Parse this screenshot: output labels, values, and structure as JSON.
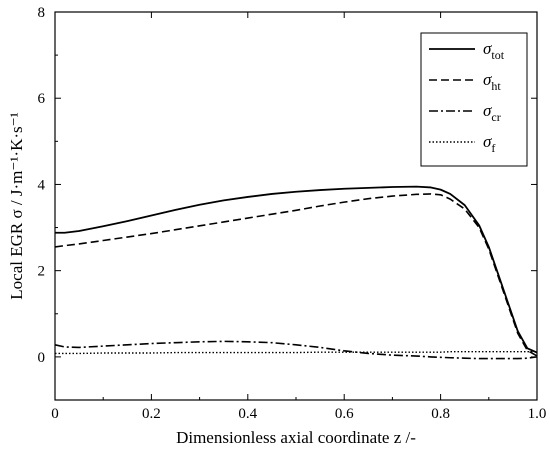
{
  "chart_data": {
    "type": "line",
    "title": "",
    "xlabel": "Dimensionless axial coordinate z /-",
    "ylabel": "Local EGR σ / J·m⁻¹·K·s⁻¹",
    "xlim": [
      0,
      1.0
    ],
    "ylim": [
      -1,
      8
    ],
    "x_ticks": [
      "0",
      "0.2",
      "0.4",
      "0.6",
      "0.8",
      "1.0"
    ],
    "y_ticks": [
      "0",
      "2",
      "4",
      "6",
      "8"
    ],
    "legend_position": "top-right",
    "x": [
      0,
      0.02,
      0.05,
      0.1,
      0.15,
      0.2,
      0.25,
      0.3,
      0.35,
      0.4,
      0.45,
      0.5,
      0.55,
      0.6,
      0.65,
      0.7,
      0.75,
      0.78,
      0.8,
      0.82,
      0.85,
      0.88,
      0.9,
      0.92,
      0.94,
      0.96,
      0.98,
      1.0
    ],
    "series": [
      {
        "name": "σtot",
        "symbol": "σ",
        "subscript": "tot",
        "style": "solid",
        "values": [
          2.88,
          2.88,
          2.92,
          3.03,
          3.15,
          3.28,
          3.41,
          3.53,
          3.63,
          3.71,
          3.78,
          3.83,
          3.87,
          3.9,
          3.92,
          3.94,
          3.95,
          3.93,
          3.88,
          3.78,
          3.52,
          3.05,
          2.55,
          1.9,
          1.25,
          0.6,
          0.2,
          0.1
        ]
      },
      {
        "name": "σht",
        "symbol": "σ",
        "subscript": "ht",
        "style": "dash",
        "values": [
          2.55,
          2.58,
          2.62,
          2.7,
          2.78,
          2.86,
          2.95,
          3.04,
          3.13,
          3.22,
          3.31,
          3.4,
          3.5,
          3.59,
          3.67,
          3.73,
          3.77,
          3.78,
          3.76,
          3.66,
          3.43,
          3.0,
          2.5,
          1.85,
          1.2,
          0.55,
          0.15,
          0.02
        ]
      },
      {
        "name": "σcr",
        "symbol": "σ",
        "subscript": "cr",
        "style": "dashdot",
        "values": [
          0.28,
          0.23,
          0.22,
          0.25,
          0.28,
          0.31,
          0.33,
          0.35,
          0.36,
          0.35,
          0.33,
          0.28,
          0.22,
          0.14,
          0.08,
          0.04,
          0.02,
          0.0,
          -0.01,
          -0.02,
          -0.03,
          -0.04,
          -0.04,
          -0.04,
          -0.04,
          -0.04,
          -0.03,
          0.0
        ]
      },
      {
        "name": "σf",
        "symbol": "σ",
        "subscript": "f",
        "style": "dot",
        "values": [
          0.08,
          0.08,
          0.08,
          0.09,
          0.09,
          0.09,
          0.1,
          0.1,
          0.1,
          0.1,
          0.1,
          0.1,
          0.11,
          0.11,
          0.11,
          0.11,
          0.11,
          0.11,
          0.11,
          0.12,
          0.12,
          0.12,
          0.12,
          0.12,
          0.12,
          0.12,
          0.12,
          0.12
        ]
      }
    ]
  }
}
